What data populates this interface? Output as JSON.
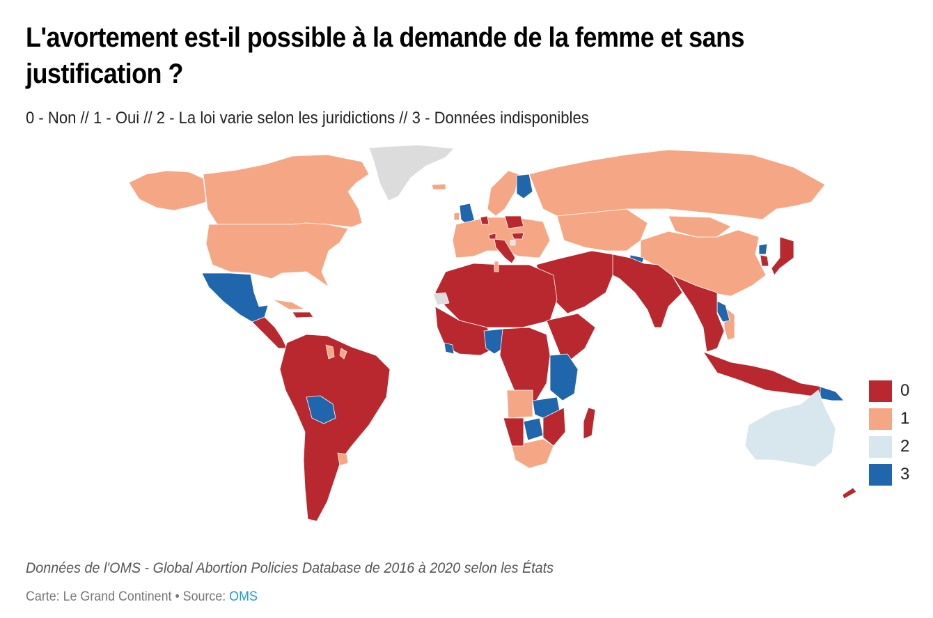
{
  "header": {
    "title": "L'avortement est-il possible à la demande de la femme et sans justification ?",
    "subtitle": "0 - Non // 1 - Oui // 2 - La loi varie selon les juridictions // 3 - Données indisponibles"
  },
  "colors": {
    "0": "#b9282e",
    "1": "#f5a785",
    "2": "#d8e6ed",
    "3": "#1f66ad",
    "nodata": "#dcdcdc"
  },
  "legend": {
    "items": [
      {
        "value": 0,
        "label": "0",
        "color": "#b9282e"
      },
      {
        "value": 1,
        "label": "1",
        "color": "#f5a785"
      },
      {
        "value": 2,
        "label": "2",
        "color": "#d8e6ed"
      },
      {
        "value": 3,
        "label": "3",
        "color": "#1f66ad"
      }
    ]
  },
  "map_data": {
    "regions": [
      {
        "name": "Greenland",
        "value": null
      },
      {
        "name": "Canada",
        "value": 1
      },
      {
        "name": "Alaska",
        "value": 1
      },
      {
        "name": "United States",
        "value": 1
      },
      {
        "name": "Mexico",
        "value": 3
      },
      {
        "name": "Central America",
        "value": 0
      },
      {
        "name": "Cuba",
        "value": 1
      },
      {
        "name": "Hispaniola",
        "value": 0
      },
      {
        "name": "South America",
        "value": 0
      },
      {
        "name": "Bolivia",
        "value": 3
      },
      {
        "name": "Guyana",
        "value": 1
      },
      {
        "name": "French Guiana",
        "value": 1
      },
      {
        "name": "Uruguay",
        "value": 1
      },
      {
        "name": "Iceland",
        "value": 1
      },
      {
        "name": "United Kingdom",
        "value": 3
      },
      {
        "name": "Ireland",
        "value": 1
      },
      {
        "name": "Scandinavia",
        "value": 1
      },
      {
        "name": "Finland",
        "value": 3
      },
      {
        "name": "Western Europe",
        "value": 1
      },
      {
        "name": "Netherlands",
        "value": 0
      },
      {
        "name": "Poland",
        "value": 0
      },
      {
        "name": "Hungary",
        "value": 0
      },
      {
        "name": "Italy",
        "value": 0
      },
      {
        "name": "Switzerland",
        "value": 0
      },
      {
        "name": "Bosnia",
        "value": 2
      },
      {
        "name": "Russia",
        "value": 1
      },
      {
        "name": "Central Asia",
        "value": 1
      },
      {
        "name": "China",
        "value": 1
      },
      {
        "name": "Mongolia",
        "value": 1
      },
      {
        "name": "Vietnam",
        "value": 1
      },
      {
        "name": "North Korea",
        "value": 3
      },
      {
        "name": "South Korea",
        "value": 0
      },
      {
        "name": "Japan",
        "value": 0
      },
      {
        "name": "Nepal",
        "value": 3
      },
      {
        "name": "Laos",
        "value": 3
      },
      {
        "name": "South Asia",
        "value": 0
      },
      {
        "name": "Middle East",
        "value": 0
      },
      {
        "name": "North Africa",
        "value": 0
      },
      {
        "name": "Western Sahara",
        "value": null
      },
      {
        "name": "Tunisia",
        "value": 1
      },
      {
        "name": "West Africa",
        "value": 0
      },
      {
        "name": "Nigeria",
        "value": 3
      },
      {
        "name": "Liberia",
        "value": 3
      },
      {
        "name": "Central Africa",
        "value": 0
      },
      {
        "name": "East Africa",
        "value": 0
      },
      {
        "name": "Kenya Uganda Tanzania",
        "value": 3
      },
      {
        "name": "Zambia Malawi",
        "value": 3
      },
      {
        "name": "Botswana",
        "value": 3
      },
      {
        "name": "Angola",
        "value": 1
      },
      {
        "name": "South Africa",
        "value": 1
      },
      {
        "name": "Namibia",
        "value": 0
      },
      {
        "name": "Mozambique Zimbabwe",
        "value": 0
      },
      {
        "name": "Madagascar",
        "value": 0
      },
      {
        "name": "Southeast Asia",
        "value": 0
      },
      {
        "name": "Indonesia",
        "value": 0
      },
      {
        "name": "Papua New Guinea",
        "value": 3
      },
      {
        "name": "Australia",
        "value": 2
      },
      {
        "name": "New Zealand",
        "value": 0
      }
    ]
  },
  "footer": {
    "note": "Données de l'OMS - Global Abortion Policies Database de 2016 à 2020 selon les États",
    "credit_prefix": "Carte: Le Grand Continent • Source: ",
    "source_link": "OMS"
  }
}
